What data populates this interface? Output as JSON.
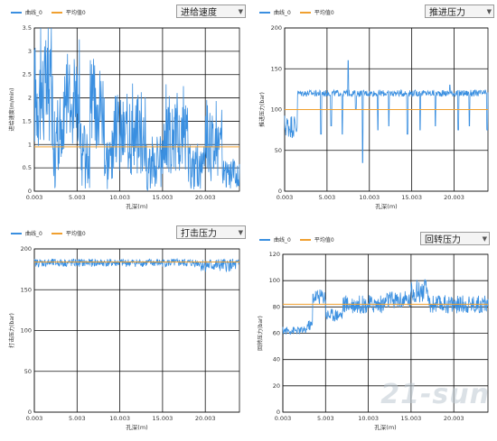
{
  "colors": {
    "series": "#3a8fe0",
    "average": "#f0a030",
    "grid": "#111111",
    "axis": "#333333"
  },
  "watermark": "21-sun",
  "charts": [
    {
      "legend": {
        "series": "曲线_0",
        "average": "平均值0"
      },
      "dropdown": {
        "selected": "进给速度",
        "icon": "chevron-down-icon"
      }
    },
    {
      "legend": {
        "series": "曲线_0",
        "average": "平均值0"
      },
      "dropdown": {
        "selected": "推进压力",
        "icon": "chevron-down-icon"
      }
    },
    {
      "legend": {
        "series": "曲线_0",
        "average": "平均值0"
      },
      "dropdown": {
        "selected": "打击压力",
        "icon": "chevron-down-icon"
      }
    },
    {
      "legend": {
        "series": "曲线_0",
        "average": "平均值0"
      },
      "dropdown": {
        "selected": "回转压力",
        "icon": "chevron-down-icon"
      }
    }
  ],
  "chart_data": [
    {
      "type": "line",
      "xlabel": "孔深(m)",
      "ylabel": "进给速度(m/min)",
      "xlim": [
        0.003,
        24
      ],
      "ylim": [
        0,
        3.5
      ],
      "xticks": [
        "0.003",
        "5.003",
        "10.003",
        "15.003",
        "20.003"
      ],
      "yticks": [
        "0",
        "0.5",
        "1",
        "1.5",
        "2",
        "2.5",
        "3",
        "3.5"
      ],
      "average": 0.95,
      "grid": true,
      "legend_position": "top-left",
      "segments": [
        [
          0.003,
          2.1,
          1.2
        ],
        [
          2.2,
          0.9,
          0.9
        ],
        [
          3.5,
          2.0,
          1.0
        ],
        [
          5.3,
          0.8,
          0.8
        ],
        [
          6.5,
          1.9,
          1.0
        ],
        [
          8.2,
          0.7,
          0.7
        ],
        [
          9.4,
          1.2,
          0.9
        ],
        [
          13.0,
          0.6,
          0.6
        ],
        [
          15.0,
          1.1,
          0.8
        ],
        [
          18.0,
          0.5,
          0.5
        ],
        [
          20.0,
          1.0,
          0.8
        ],
        [
          22.0,
          0.35,
          0.3
        ]
      ]
    },
    {
      "type": "line",
      "xlabel": "孔深(m)",
      "ylabel": "推进压力(bar)",
      "xlim": [
        0.003,
        24
      ],
      "ylim": [
        0,
        200
      ],
      "xticks": [
        "0.003",
        "5.003",
        "10.003",
        "15.003",
        "20.003"
      ],
      "yticks": [
        "0",
        "50",
        "100",
        "150",
        "200"
      ],
      "average": 100,
      "grid": true,
      "legend_position": "top-left",
      "segments": [
        [
          0.003,
          80,
          15
        ],
        [
          1.5,
          120,
          4
        ],
        [
          24,
          120,
          4
        ]
      ],
      "spikes": [
        [
          4.3,
          70
        ],
        [
          5.5,
          80
        ],
        [
          6.8,
          70
        ],
        [
          7.5,
          160
        ],
        [
          8.4,
          100
        ],
        [
          9.2,
          35
        ],
        [
          11.0,
          75
        ],
        [
          12.3,
          80
        ],
        [
          13.0,
          120
        ],
        [
          14.5,
          70
        ],
        [
          16.0,
          75
        ],
        [
          17.8,
          80
        ],
        [
          19.5,
          130
        ],
        [
          20.5,
          75
        ],
        [
          21.8,
          80
        ],
        [
          23.9,
          75
        ]
      ]
    },
    {
      "type": "line",
      "xlabel": "孔深(m)",
      "ylabel": "打击压力(bar)",
      "xlim": [
        0.003,
        24
      ],
      "ylim": [
        0,
        200
      ],
      "xticks": [
        "0.003",
        "5.003",
        "10.003",
        "15.003",
        "20.003"
      ],
      "yticks": [
        "0",
        "50",
        "100",
        "150",
        "200"
      ],
      "average": 184,
      "grid": true,
      "legend_position": "top-left",
      "segments": [
        [
          0.003,
          183,
          5
        ],
        [
          19.5,
          180,
          8
        ],
        [
          24,
          180,
          8
        ]
      ]
    },
    {
      "type": "line",
      "xlabel": "孔深(m)",
      "ylabel": "回转压力(bar)",
      "xlim": [
        0.003,
        24
      ],
      "ylim": [
        0,
        120
      ],
      "xticks": [
        "0.003",
        "5.003",
        "10.003",
        "15.003",
        "20.003"
      ],
      "yticks": [
        "0",
        "20",
        "40",
        "60",
        "80",
        "100",
        "120"
      ],
      "average": 82,
      "grid": true,
      "legend_position": "top-left",
      "segments": [
        [
          0.003,
          62,
          3
        ],
        [
          2.8,
          66,
          4
        ],
        [
          3.5,
          88,
          6
        ],
        [
          5.0,
          74,
          5
        ],
        [
          7.0,
          82,
          7
        ],
        [
          12.0,
          85,
          7
        ],
        [
          15.0,
          92,
          9
        ],
        [
          17.0,
          82,
          7
        ],
        [
          24,
          84,
          7
        ]
      ]
    }
  ]
}
